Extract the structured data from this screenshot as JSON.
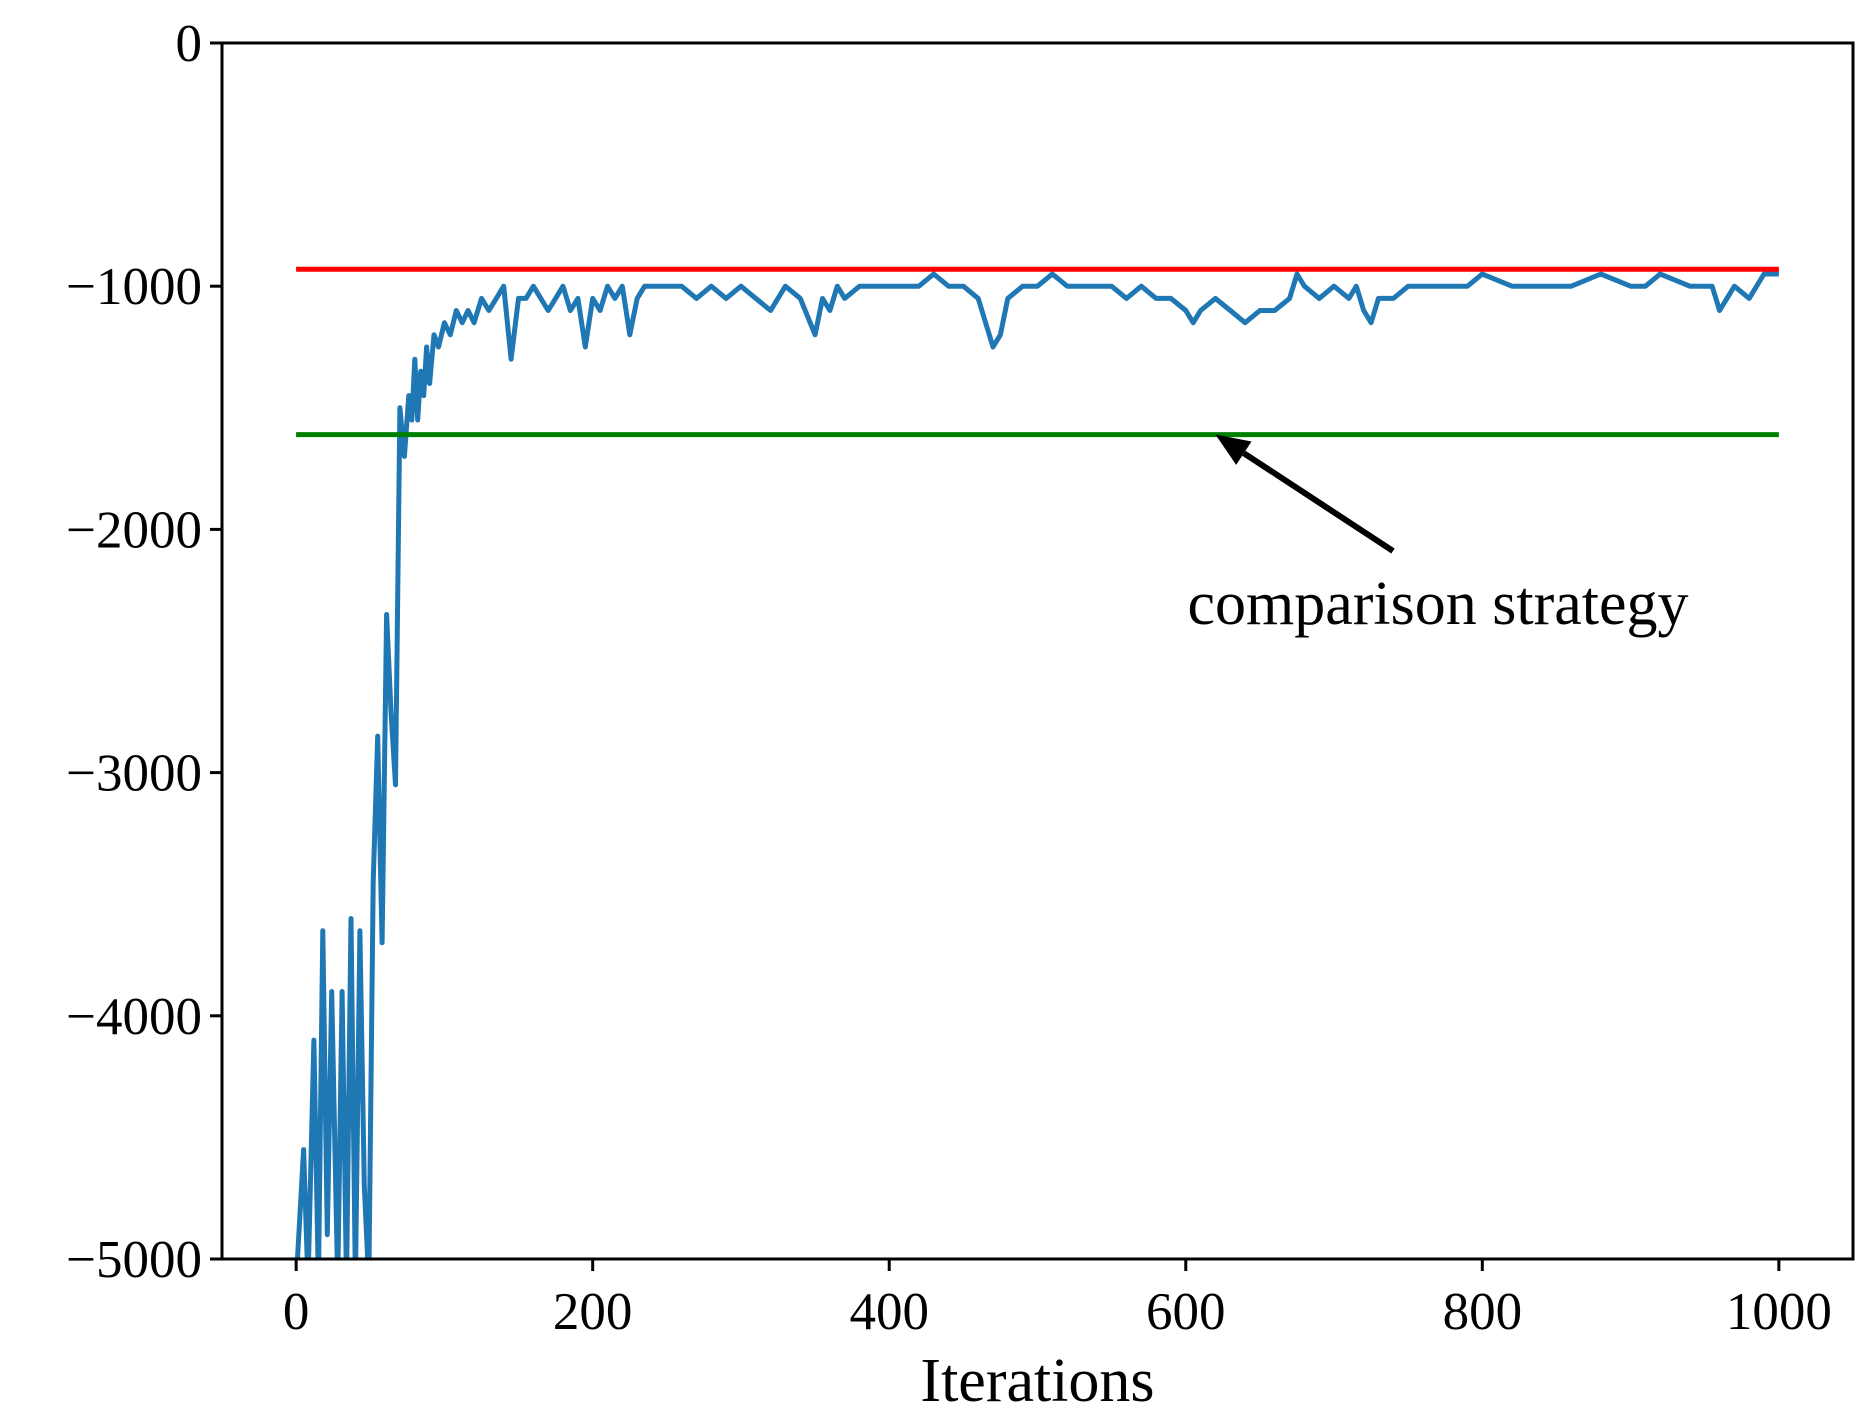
{
  "chart_data": {
    "type": "line",
    "title": "",
    "xlabel": "Iterations",
    "ylabel": "",
    "xlim": [
      -50,
      1050
    ],
    "ylim": [
      -5000,
      0
    ],
    "grid": false,
    "xticks": [
      0,
      200,
      400,
      600,
      800,
      1000
    ],
    "xtick_labels": [
      "0",
      "200",
      "400",
      "600",
      "800",
      "1000"
    ],
    "yticks": [
      0,
      -1000,
      -2000,
      -3000,
      -4000,
      -5000
    ],
    "ytick_labels": [
      "0",
      "−1000",
      "−2000",
      "−3000",
      "−4000",
      "−5000"
    ],
    "series": [
      {
        "color": "#1f77b4",
        "x": [
          0,
          5,
          8,
          12,
          15,
          18,
          21,
          24,
          28,
          31,
          34,
          37,
          40,
          43,
          46,
          49,
          52,
          55,
          58,
          61,
          64,
          67,
          70,
          73,
          76,
          78,
          80,
          82,
          84,
          86,
          88,
          90,
          93,
          96,
          100,
          104,
          108,
          112,
          116,
          120,
          125,
          130,
          135,
          140,
          145,
          150,
          155,
          160,
          165,
          170,
          175,
          180,
          185,
          190,
          195,
          200,
          205,
          210,
          215,
          220,
          225,
          230,
          235,
          240,
          250,
          260,
          270,
          280,
          290,
          300,
          310,
          320,
          330,
          340,
          350,
          355,
          360,
          365,
          370,
          380,
          390,
          400,
          410,
          420,
          430,
          440,
          450,
          460,
          465,
          470,
          475,
          480,
          490,
          500,
          510,
          520,
          530,
          540,
          550,
          560,
          570,
          580,
          590,
          600,
          605,
          610,
          620,
          630,
          640,
          650,
          660,
          670,
          675,
          680,
          690,
          700,
          710,
          715,
          720,
          725,
          730,
          740,
          750,
          760,
          770,
          780,
          790,
          800,
          820,
          840,
          860,
          880,
          900,
          910,
          920,
          940,
          950,
          955,
          960,
          970,
          980,
          990,
          1000
        ],
        "y": [
          -5100,
          -4550,
          -5100,
          -4100,
          -5100,
          -3650,
          -4900,
          -3900,
          -5100,
          -3900,
          -5100,
          -3600,
          -5100,
          -3650,
          -4700,
          -5100,
          -3450,
          -2850,
          -3700,
          -2350,
          -2750,
          -3050,
          -1500,
          -1700,
          -1450,
          -1550,
          -1300,
          -1550,
          -1350,
          -1450,
          -1250,
          -1400,
          -1200,
          -1250,
          -1150,
          -1200,
          -1100,
          -1150,
          -1100,
          -1150,
          -1050,
          -1100,
          -1050,
          -1000,
          -1300,
          -1050,
          -1050,
          -1000,
          -1050,
          -1100,
          -1050,
          -1000,
          -1100,
          -1050,
          -1250,
          -1050,
          -1100,
          -1000,
          -1050,
          -1000,
          -1200,
          -1050,
          -1000,
          -1000,
          -1000,
          -1000,
          -1050,
          -1000,
          -1050,
          -1000,
          -1050,
          -1100,
          -1000,
          -1050,
          -1200,
          -1050,
          -1100,
          -1000,
          -1050,
          -1000,
          -1000,
          -1000,
          -1000,
          -1000,
          -950,
          -1000,
          -1000,
          -1050,
          -1150,
          -1250,
          -1200,
          -1050,
          -1000,
          -1000,
          -950,
          -1000,
          -1000,
          -1000,
          -1000,
          -1050,
          -1000,
          -1050,
          -1050,
          -1100,
          -1150,
          -1100,
          -1050,
          -1100,
          -1150,
          -1100,
          -1100,
          -1050,
          -950,
          -1000,
          -1050,
          -1000,
          -1050,
          -1000,
          -1100,
          -1150,
          -1050,
          -1050,
          -1000,
          -1000,
          -1000,
          -1000,
          -1000,
          -950,
          -1000,
          -1000,
          -1000,
          -950,
          -1000,
          -1000,
          -950,
          -1000,
          -1000,
          -1000,
          -1100,
          -1000,
          -1050,
          -950,
          -950
        ]
      },
      {
        "color": "#ff0000",
        "x": [
          0,
          1000
        ],
        "y": [
          -930,
          -930
        ]
      },
      {
        "color": "#008000",
        "x": [
          0,
          1000
        ],
        "y": [
          -1610,
          -1610
        ]
      }
    ],
    "annotation": {
      "text": "comparison strategy",
      "point_x": 620,
      "point_y": -1610
    }
  }
}
